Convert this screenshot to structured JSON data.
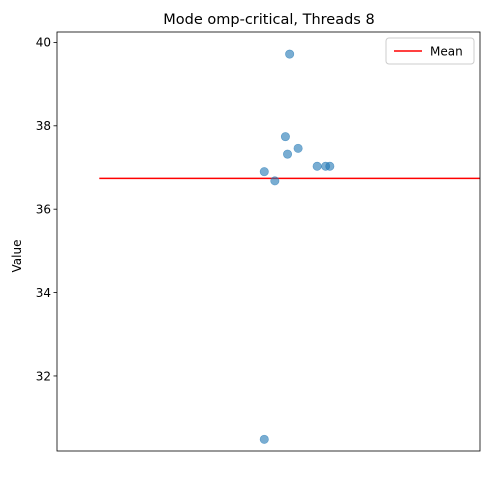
{
  "chart_data": {
    "type": "scatter",
    "title": "Mode omp-critical, Threads 8",
    "xlabel": "",
    "ylabel": "Value",
    "ylim": [
      30.2,
      40.25
    ],
    "yticks": [
      32,
      34,
      36,
      38,
      40
    ],
    "xlim": [
      -1,
      1
    ],
    "grid": false,
    "legend": {
      "position": "top-right",
      "entries": [
        "Mean"
      ]
    },
    "series": [
      {
        "type": "scatter",
        "color": "#1f77b4",
        "points": [
          {
            "x": 0.1,
            "y": 39.72
          },
          {
            "x": 0.08,
            "y": 37.74
          },
          {
            "x": 0.14,
            "y": 37.46
          },
          {
            "x": 0.09,
            "y": 37.32
          },
          {
            "x": 0.27,
            "y": 37.03
          },
          {
            "x": 0.23,
            "y": 37.03
          },
          {
            "x": 0.29,
            "y": 37.03
          },
          {
            "x": -0.02,
            "y": 36.9
          },
          {
            "x": 0.03,
            "y": 36.68
          },
          {
            "x": -0.02,
            "y": 30.48
          }
        ]
      },
      {
        "type": "line",
        "name": "Mean",
        "color": "#ff0000",
        "x": [
          -0.8,
          1.2
        ],
        "y": [
          36.74,
          36.74
        ]
      }
    ]
  }
}
